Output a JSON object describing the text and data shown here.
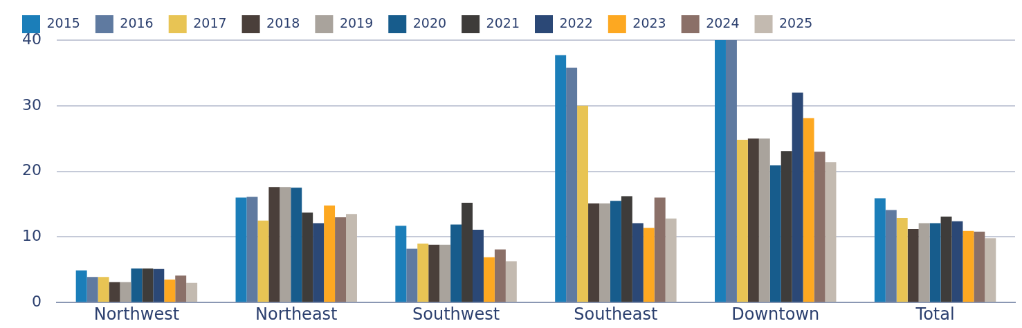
{
  "chart_data": {
    "type": "bar",
    "categories": [
      "Northwest",
      "Northeast",
      "Southwest",
      "Southeast",
      "Downtown",
      "Total"
    ],
    "series": [
      {
        "name": "2015",
        "color": "#1b7eb9",
        "values": [
          4.9,
          16.0,
          11.7,
          37.7,
          40,
          15.9
        ]
      },
      {
        "name": "2016",
        "color": "#5f7aa0",
        "values": [
          3.9,
          16.1,
          8.2,
          35.8,
          40,
          14.1
        ]
      },
      {
        "name": "2017",
        "color": "#e8c454",
        "values": [
          3.9,
          12.5,
          9.0,
          30.0,
          24.8,
          12.9
        ]
      },
      {
        "name": "2018",
        "color": "#4a3f3a",
        "values": [
          3.1,
          17.6,
          8.8,
          15.1,
          25.0,
          11.2
        ]
      },
      {
        "name": "2019",
        "color": "#a9a39c",
        "values": [
          3.1,
          17.6,
          8.8,
          15.1,
          25.0,
          12.1
        ]
      },
      {
        "name": "2020",
        "color": "#175c8c",
        "values": [
          5.2,
          17.5,
          11.9,
          15.5,
          20.9,
          12.1
        ]
      },
      {
        "name": "2021",
        "color": "#3e3c3a",
        "values": [
          5.2,
          13.7,
          15.2,
          16.2,
          23.1,
          13.1
        ]
      },
      {
        "name": "2022",
        "color": "#2b4876",
        "values": [
          5.1,
          12.1,
          11.1,
          12.1,
          32.0,
          12.4
        ]
      },
      {
        "name": "2023",
        "color": "#fda821",
        "values": [
          3.5,
          14.8,
          6.9,
          11.4,
          28.1,
          10.9
        ]
      },
      {
        "name": "2024",
        "color": "#8b7068",
        "values": [
          4.1,
          13.0,
          8.1,
          16.0,
          23.0,
          10.8
        ]
      },
      {
        "name": "2025",
        "color": "#c3bab0",
        "values": [
          3.0,
          13.5,
          6.3,
          12.8,
          21.4,
          9.8
        ]
      }
    ],
    "ylim": [
      0,
      40
    ],
    "yticks": [
      0,
      10,
      20,
      30,
      40
    ],
    "grid": "y",
    "legend": "top left"
  }
}
